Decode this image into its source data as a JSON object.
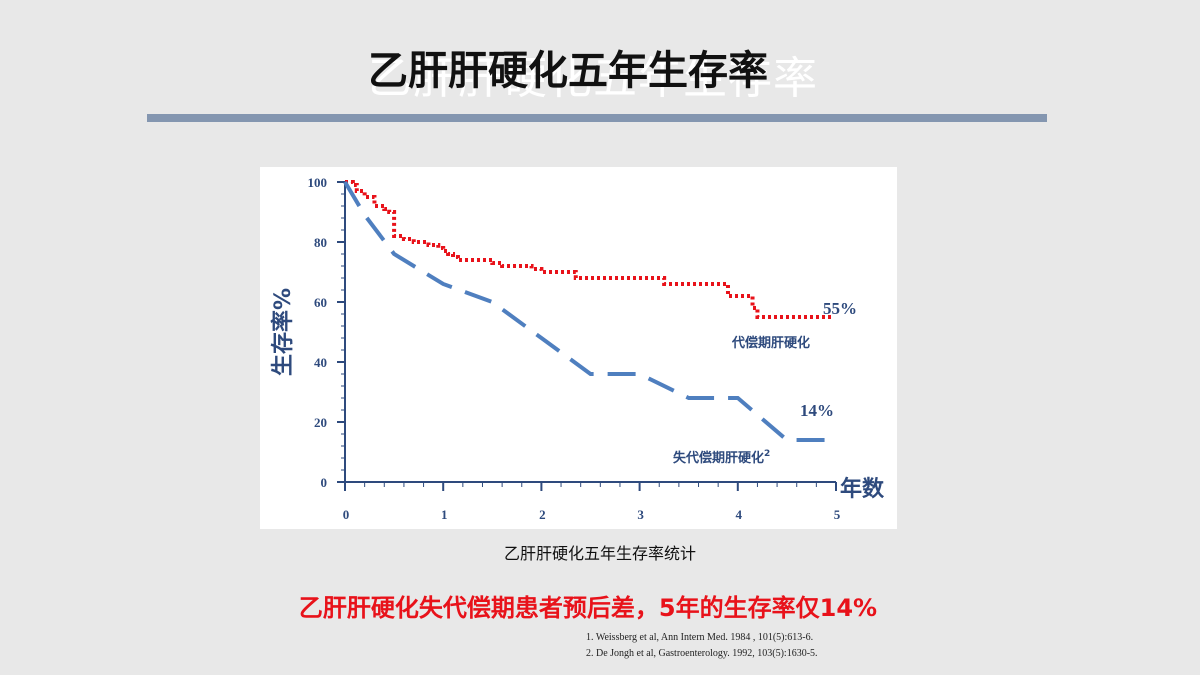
{
  "slide": {
    "title": "乙肝肝硬化五年生存率",
    "caption": "乙肝肝硬化五年生存率统计",
    "conclusion": "乙肝肝硬化失代偿期患者预后差，5年的生存率仅14%",
    "references": [
      "1. Weissberg et al, Ann Intern Med. 1984 , 101(5):613-6.",
      "2. De Jongh et al, Gastroenterology. 1992, 103(5):1630-5."
    ]
  },
  "colors": {
    "title_rule": "#8496b0",
    "axis": "#2e4a7d",
    "compensated": "#e8121a",
    "decompensated": "#4f7fbf",
    "conclusion": "#e8121a"
  },
  "chart_data": {
    "type": "line",
    "ylabel": "生存率%",
    "xlabel": "年数",
    "xlim": [
      0,
      5
    ],
    "ylim": [
      0,
      100
    ],
    "x_ticks": [
      "0",
      "1",
      "2",
      "3",
      "4",
      "5"
    ],
    "y_ticks": [
      "0",
      "20",
      "40",
      "60",
      "80",
      "100"
    ],
    "grid": false,
    "series": [
      {
        "name": "代偿期肝硬化",
        "style": "dotted",
        "color": "#e8121a",
        "end_label": "55%",
        "points": [
          [
            0,
            100
          ],
          [
            0.08,
            99
          ],
          [
            0.12,
            97
          ],
          [
            0.2,
            95
          ],
          [
            0.3,
            92
          ],
          [
            0.4,
            91
          ],
          [
            0.45,
            90
          ],
          [
            0.5,
            88
          ],
          [
            0.5,
            82
          ],
          [
            0.6,
            81
          ],
          [
            0.7,
            80
          ],
          [
            0.85,
            79
          ],
          [
            0.95,
            78
          ],
          [
            1.0,
            77
          ],
          [
            1.05,
            76
          ],
          [
            1.1,
            75
          ],
          [
            1.15,
            74
          ],
          [
            1.3,
            74
          ],
          [
            1.5,
            73
          ],
          [
            1.6,
            72
          ],
          [
            1.9,
            71
          ],
          [
            2.0,
            70
          ],
          [
            2.35,
            70
          ],
          [
            2.35,
            68
          ],
          [
            3.2,
            68
          ],
          [
            3.25,
            66
          ],
          [
            3.9,
            66
          ],
          [
            3.9,
            62
          ],
          [
            4.05,
            62
          ],
          [
            4.15,
            58
          ],
          [
            4.2,
            55
          ],
          [
            4.95,
            55
          ]
        ]
      },
      {
        "name": "失代偿期肝硬化",
        "end_label": "14%",
        "label_superscript": "2",
        "style": "dashed",
        "color": "#4f7fbf",
        "points": [
          [
            0,
            100
          ],
          [
            0.2,
            89
          ],
          [
            0.5,
            76
          ],
          [
            1.0,
            66
          ],
          [
            1.5,
            60
          ],
          [
            2.0,
            48
          ],
          [
            2.5,
            36
          ],
          [
            3.0,
            36
          ],
          [
            3.5,
            28
          ],
          [
            4.0,
            28
          ],
          [
            4.5,
            14
          ],
          [
            4.95,
            14
          ]
        ]
      }
    ]
  }
}
